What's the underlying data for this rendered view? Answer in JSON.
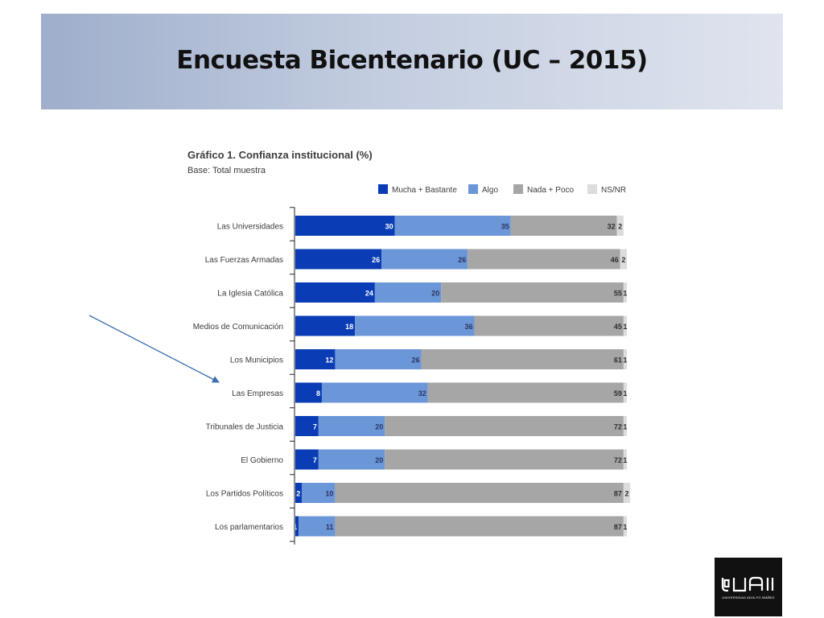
{
  "slide": {
    "title": "Encuesta Bicentenario (UC – 2015)"
  },
  "logo": {
    "mark": "UAI",
    "text": "UNIVERSIDAD ADOLFO IBÁÑEZ"
  },
  "chart_data": {
    "type": "bar",
    "orientation": "horizontal",
    "stacked": true,
    "title": "Gráfico 1. Confianza institucional (%)",
    "subtitle": "Base: Total muestra",
    "legend_position": "top-right",
    "xlim": [
      0,
      100
    ],
    "categories": [
      "Las Universidades",
      "Las Fuerzas Armadas",
      "La Iglesia Católica",
      "Medios de Comunicación",
      "Los Municipios",
      "Las Empresas",
      "Tribunales de Justicia",
      "El Gobierno",
      "Los Partidos Políticos",
      "Los parlamentarios"
    ],
    "series": [
      {
        "name": "Mucha + Bastante",
        "color": "#0a3db5",
        "label_color": "#ffffff",
        "values": [
          30,
          26,
          24,
          18,
          12,
          8,
          7,
          7,
          2,
          1
        ]
      },
      {
        "name": "Algo",
        "color": "#6b96d8",
        "label_color": "#2c3560",
        "values": [
          35,
          26,
          20,
          36,
          26,
          32,
          20,
          20,
          10,
          11
        ]
      },
      {
        "name": "Nada + Poco",
        "color": "#a6a6a6",
        "label_color": "#2f2f2f",
        "values": [
          32,
          46,
          55,
          45,
          61,
          59,
          72,
          72,
          87,
          87
        ]
      },
      {
        "name": "NS/NR",
        "color": "#dcdcdc",
        "label_color": "#2f2f2f",
        "values": [
          2,
          2,
          1,
          1,
          1,
          1,
          1,
          1,
          2,
          1
        ]
      }
    ]
  },
  "colors": {
    "banner_start": "#9eaecb",
    "banner_end": "#dfe4ee",
    "arrow": "#3d6fb0",
    "axis": "#222222",
    "category_label": "#3c3c3c"
  }
}
